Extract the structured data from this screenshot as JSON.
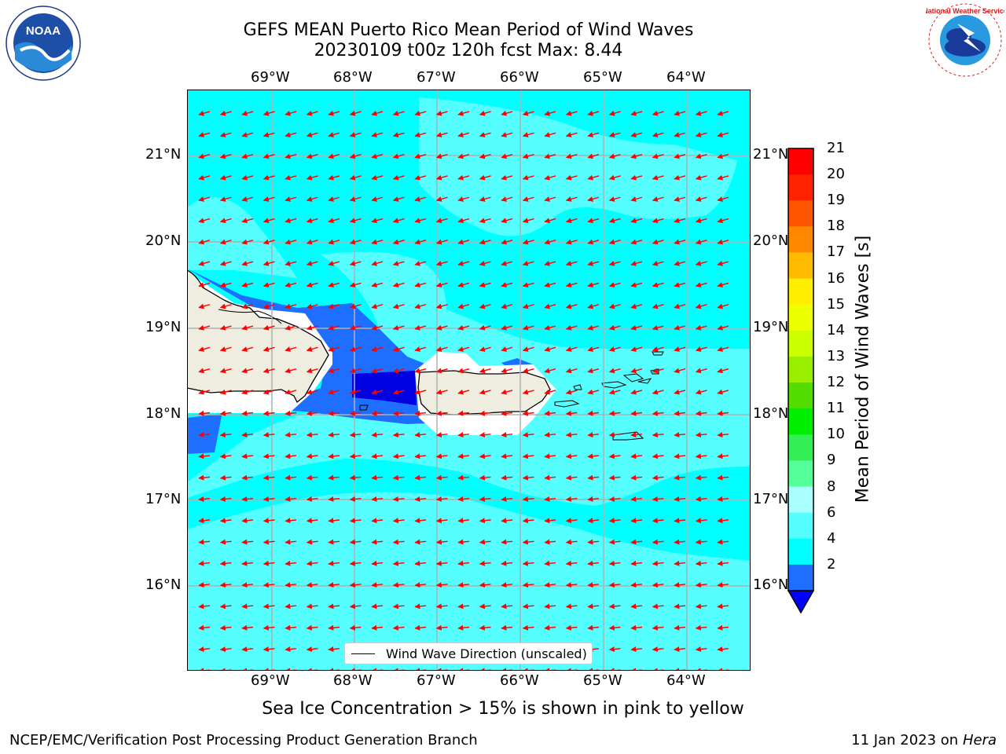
{
  "header": {
    "title_line1": "GEFS MEAN Puerto Rico Mean Period of Wind Waves",
    "title_line2": "20230109 t00z 120h fcst   Max: 8.44"
  },
  "logos": {
    "left": "NOAA",
    "right": "National Weather Service"
  },
  "map": {
    "lon_labels": [
      "69°W",
      "68°W",
      "67°W",
      "66°W",
      "65°W",
      "64°W"
    ],
    "lat_labels": [
      "21°N",
      "20°N",
      "19°N",
      "18°N",
      "17°N",
      "16°N"
    ],
    "colors": {
      "ocean_base": "#00ffff",
      "ocean_light": "#55ffff",
      "ocean_deep": "#1e6fff",
      "ocean_darkest": "#0000e0",
      "land": "#efede0",
      "arrow": "#ff0000"
    }
  },
  "legend": {
    "label": "Wind Wave Direction (unscaled)"
  },
  "colorbar": {
    "label": "Mean Period of Wind Waves [s]",
    "ticks": [
      "21",
      "20",
      "19",
      "18",
      "17",
      "16",
      "15",
      "14",
      "13",
      "12",
      "11",
      "10",
      "9",
      "8",
      "6",
      "4",
      "2"
    ],
    "colors": [
      "#ff0000",
      "#ff2200",
      "#ff5500",
      "#ff8800",
      "#ffbb00",
      "#ffee00",
      "#eeff00",
      "#ccff00",
      "#99ee00",
      "#55dd00",
      "#00ee00",
      "#33ee55",
      "#55ff99",
      "#aaffff",
      "#55ffff",
      "#00ffff",
      "#1e6fff"
    ]
  },
  "footer": {
    "subtitle": "Sea Ice Concentration > 15% is shown in pink to yellow",
    "left": "NCEP/EMC/Verification Post Processing Product Generation Branch",
    "right_date": "11 Jan 2023 on ",
    "right_host": "Hera"
  }
}
